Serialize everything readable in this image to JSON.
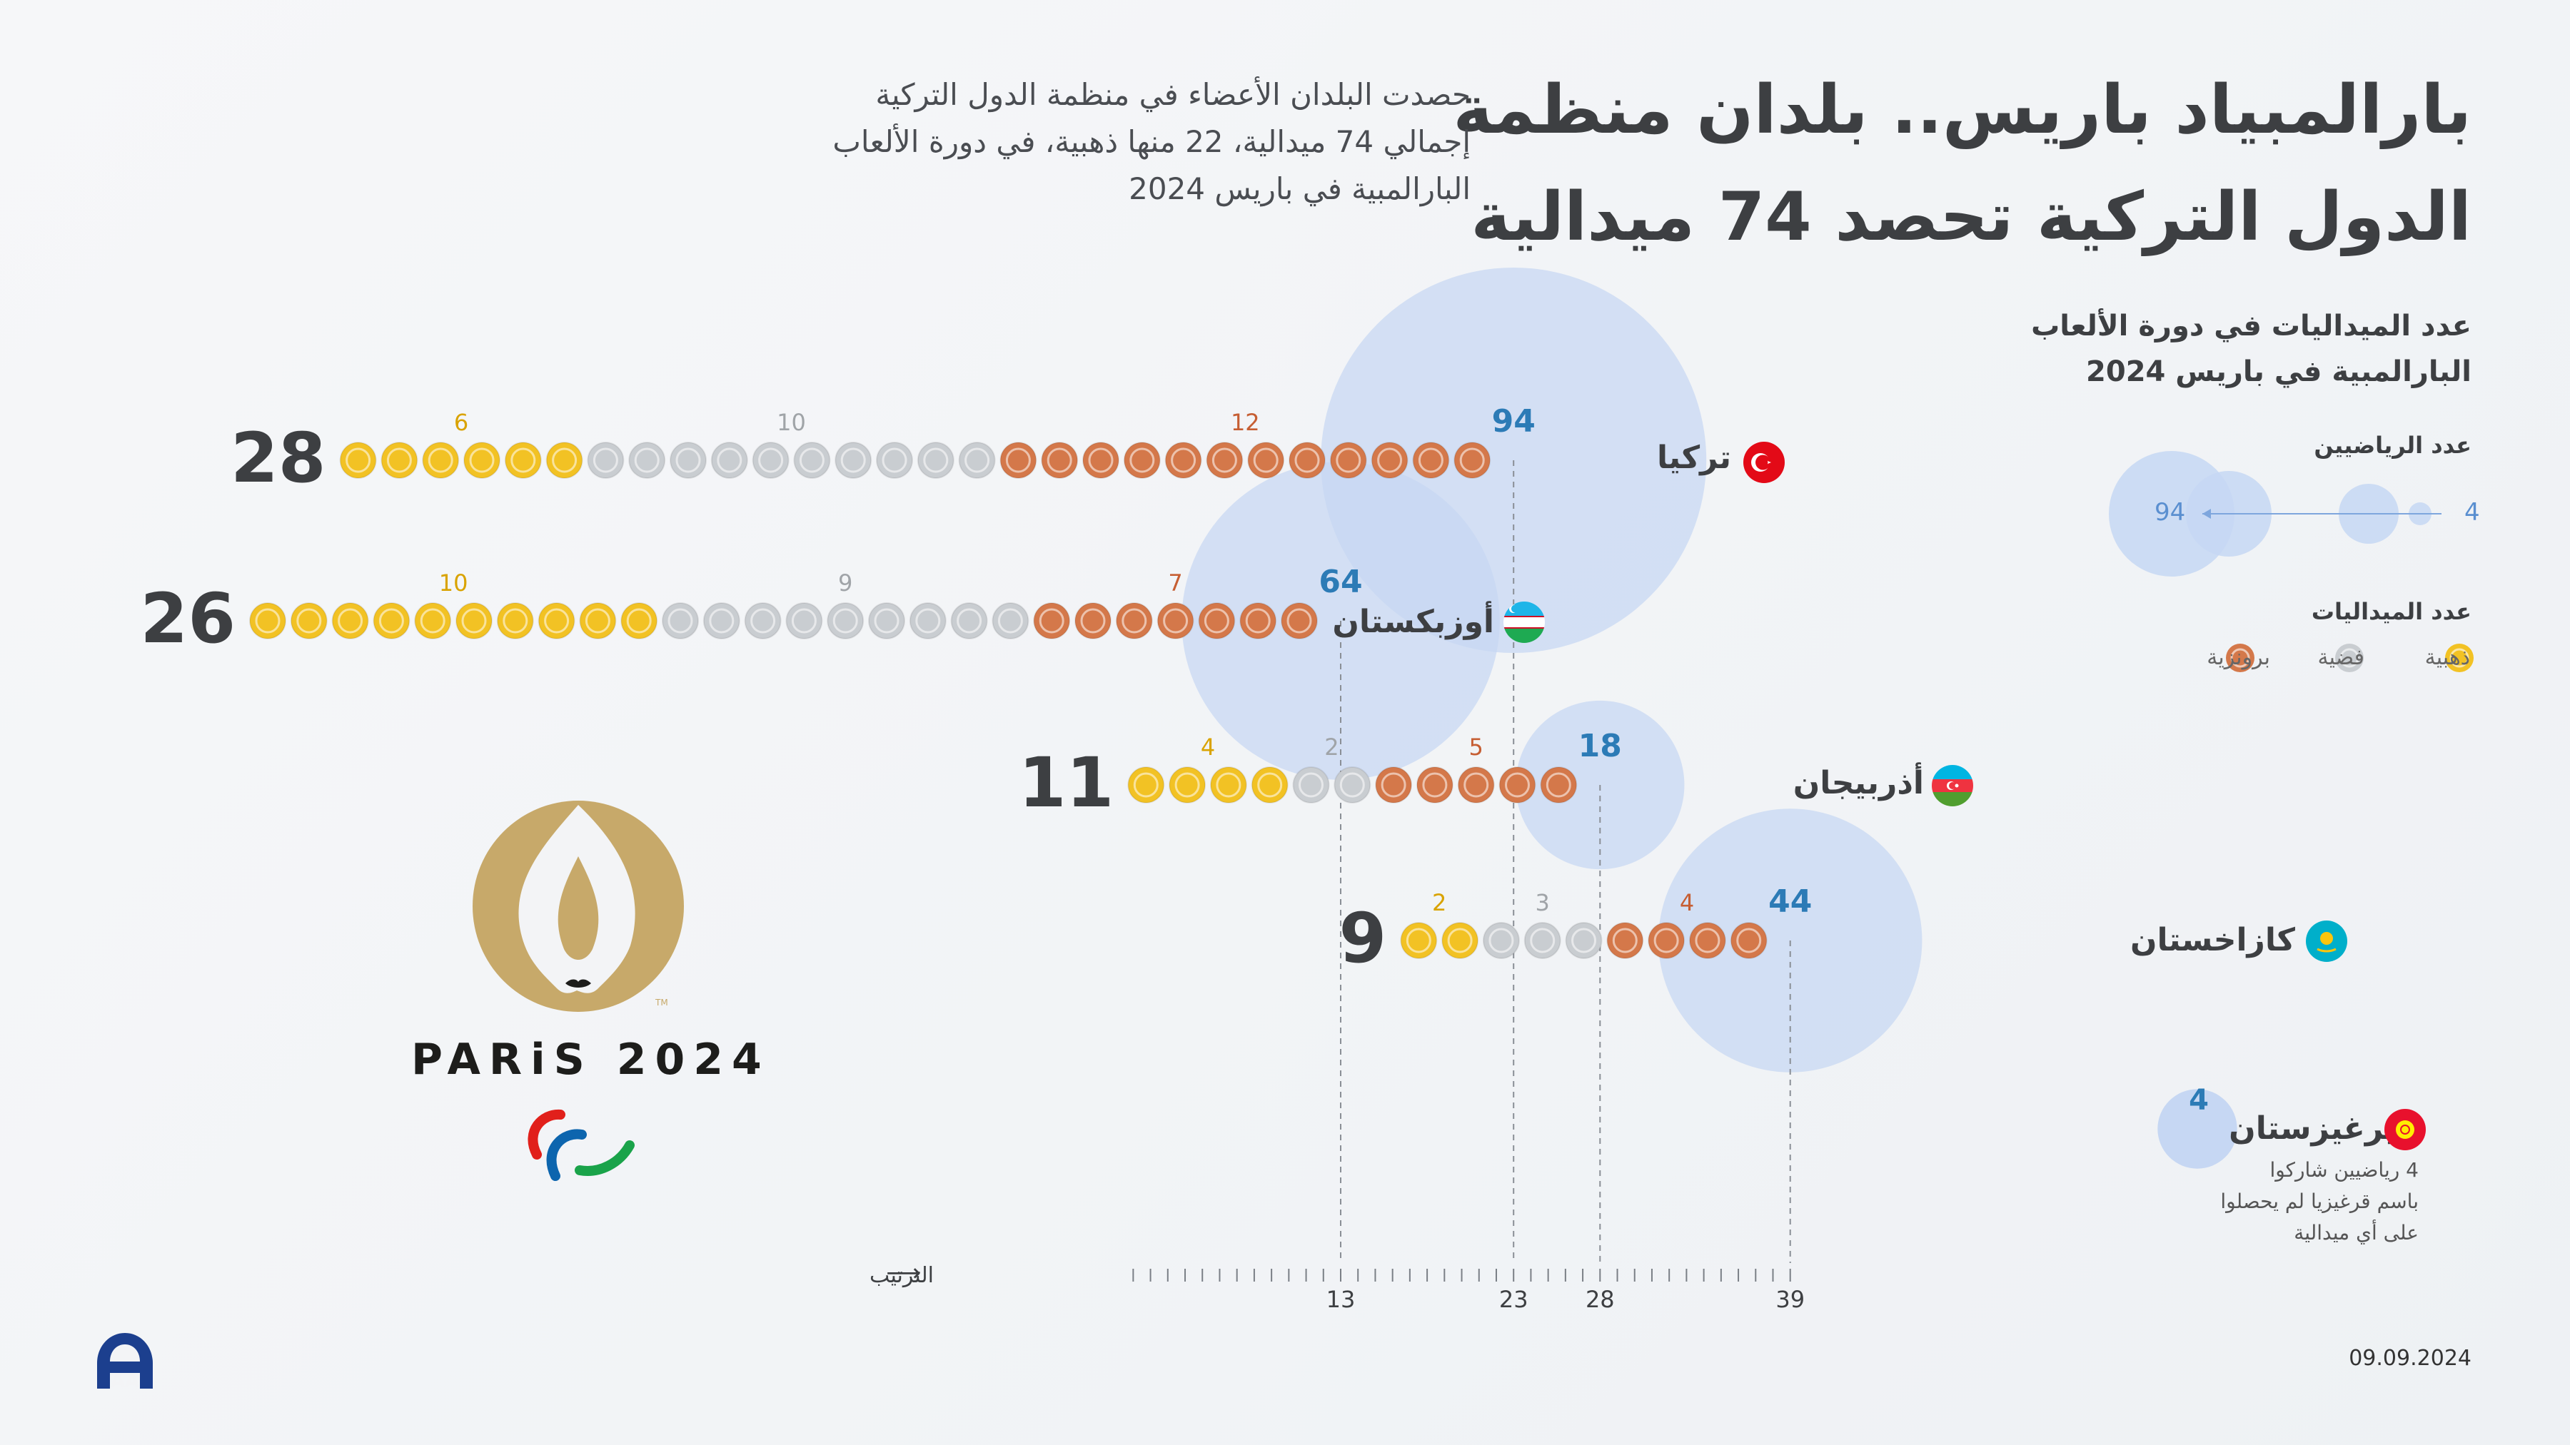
{
  "header": {
    "title_line1": "بارالمبياد باريس.. بلدان منظمة",
    "title_line2": "الدول التركية تحصد 74 ميدالية",
    "subtitle_line1": "حصدت البلدان الأعضاء في منظمة الدول التركية",
    "subtitle_line2": "إجمالي 74 ميدالية، 22 منها ذهبية،   في دورة الألعاب",
    "subtitle_line3": "البارالمبية في باريس 2024"
  },
  "legend": {
    "title_line1": "عدد الميداليات في دورة الألعاب",
    "title_line2": "البارالمبية في باريس 2024",
    "athletes_label": "عدد الرياضيين",
    "athletes_max": "94",
    "athletes_min": "4",
    "medals_label": "عدد الميداليات",
    "gold_label": "ذهبية",
    "silver_label": "فضية",
    "bronze_label": "برونزية"
  },
  "axis": {
    "label": "الترتيب",
    "arrow": "⟶"
  },
  "colors": {
    "gold": "#f2c224",
    "silver": "#c9cdd1",
    "bronze": "#d4784a",
    "bubble": "#c6d7f3",
    "athletes_text": "#2c7bb6",
    "gold_text": "#d9a300",
    "silver_text": "#a0a4a8",
    "bronze_text": "#c65e33"
  },
  "chart_data": {
    "type": "scatter",
    "x_axis": {
      "title": "الترتيب",
      "ticks": [
        13,
        23,
        28,
        39
      ]
    },
    "series": [
      {
        "country": "تركيا",
        "flag": "turkey-flag-icon",
        "total": 28,
        "gold": 6,
        "silver": 10,
        "bronze": 12,
        "athletes": 94,
        "rank": 23
      },
      {
        "country": "أوزبكستان",
        "flag": "uzbekistan-flag-icon",
        "total": 26,
        "gold": 10,
        "silver": 9,
        "bronze": 7,
        "athletes": 64,
        "rank": 13
      },
      {
        "country": "أذربيجان",
        "flag": "azerbaijan-flag-icon",
        "total": 11,
        "gold": 4,
        "silver": 2,
        "bronze": 5,
        "athletes": 18,
        "rank": 28
      },
      {
        "country": "كازاخستان",
        "flag": "kazakhstan-flag-icon",
        "total": 9,
        "gold": 2,
        "silver": 3,
        "bronze": 4,
        "athletes": 44,
        "rank": 39
      },
      {
        "country": "قيرغيزستان",
        "flag": "kyrgyzstan-flag-icon",
        "total": 0,
        "gold": 0,
        "silver": 0,
        "bronze": 0,
        "athletes": 4,
        "rank": null
      }
    ]
  },
  "note": {
    "line1": "4 رياضيين شاركوا",
    "line2": "باسم قرغيزيا لم يحصلوا",
    "line3": "على أي ميدالية"
  },
  "logo": {
    "text": "PARiS 2024",
    "tm": "TM",
    "agency": "AA"
  },
  "date": "09.09.2024"
}
